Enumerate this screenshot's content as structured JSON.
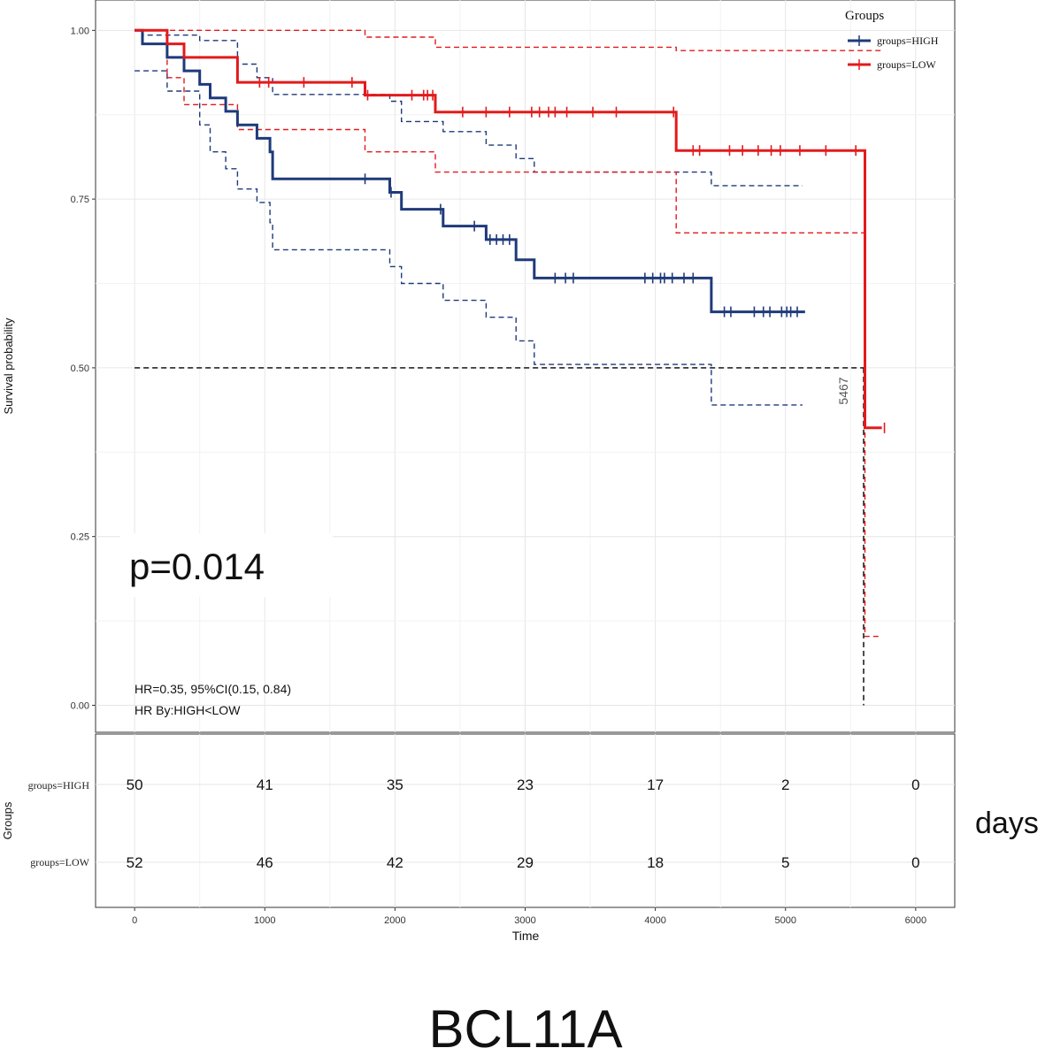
{
  "chart_data": {
    "type": "line",
    "subtype": "kaplan-meier",
    "title": "BCL11A",
    "xlabel": "Time",
    "ylabel": "Survival probability",
    "xlim": [
      -300,
      6300
    ],
    "ylim": [
      -0.04,
      1.045
    ],
    "x_ticks": [
      0,
      1000,
      2000,
      3000,
      4000,
      5000,
      6000
    ],
    "x_tick_labels": [
      "0",
      "1000",
      "2000",
      "3000",
      "4000",
      "5000",
      "6000"
    ],
    "y_ticks": [
      0,
      0.25,
      0.5,
      0.75,
      1.0
    ],
    "y_tick_labels": [
      "0.00",
      "0.25",
      "0.50",
      "0.75",
      "1.00"
    ],
    "grid": true,
    "legend": {
      "title": "Groups",
      "position": "top-right",
      "entries": [
        "groups=HIGH",
        "groups=LOW"
      ]
    },
    "colors": {
      "HIGH": "#1f3a7a",
      "LOW": "#e31a1c",
      "median": "#000000"
    },
    "pvalue_label": "p=0.014",
    "hr_label": "HR=0.35, 95%CI(0.15, 0.84)",
    "hr_by_label": "HR By:HIGH<LOW",
    "median_label": "5467",
    "median_survival_line": {
      "y": 0.5,
      "x_from": 0,
      "x_to": 5600
    },
    "series": [
      {
        "name": "groups=HIGH",
        "key": "HIGH",
        "steps": [
          [
            0,
            1.0
          ],
          [
            60,
            0.98
          ],
          [
            250,
            0.96
          ],
          [
            380,
            0.94
          ],
          [
            500,
            0.92
          ],
          [
            580,
            0.9
          ],
          [
            700,
            0.88
          ],
          [
            790,
            0.86
          ],
          [
            940,
            0.84
          ],
          [
            1040,
            0.82
          ],
          [
            1060,
            0.78
          ],
          [
            1960,
            0.76
          ],
          [
            2050,
            0.735
          ],
          [
            2370,
            0.71
          ],
          [
            2700,
            0.69
          ],
          [
            2930,
            0.66
          ],
          [
            3070,
            0.633
          ],
          [
            4430,
            0.583
          ],
          [
            5150,
            0.583
          ]
        ],
        "censor_times": [
          1770,
          1970,
          2350,
          2610,
          2730,
          2780,
          2830,
          2880,
          3230,
          3310,
          3370,
          3920,
          3980,
          4040,
          4070,
          4130,
          4220,
          4290,
          4530,
          4580,
          4760,
          4830,
          4880,
          4970,
          5010,
          5040,
          5090
        ],
        "ci_upper": [
          [
            0,
            1.0
          ],
          [
            60,
            0.993
          ],
          [
            500,
            0.985
          ],
          [
            790,
            0.95
          ],
          [
            940,
            0.93
          ],
          [
            1060,
            0.905
          ],
          [
            1960,
            0.895
          ],
          [
            2050,
            0.865
          ],
          [
            2370,
            0.85
          ],
          [
            2700,
            0.83
          ],
          [
            2930,
            0.81
          ],
          [
            3070,
            0.79
          ],
          [
            4430,
            0.77
          ],
          [
            5130,
            0.77
          ]
        ],
        "ci_lower": [
          [
            0,
            0.94
          ],
          [
            250,
            0.91
          ],
          [
            500,
            0.86
          ],
          [
            580,
            0.82
          ],
          [
            700,
            0.795
          ],
          [
            790,
            0.765
          ],
          [
            940,
            0.745
          ],
          [
            1040,
            0.715
          ],
          [
            1060,
            0.675
          ],
          [
            1960,
            0.65
          ],
          [
            2050,
            0.625
          ],
          [
            2370,
            0.6
          ],
          [
            2700,
            0.575
          ],
          [
            2930,
            0.54
          ],
          [
            3070,
            0.505
          ],
          [
            4430,
            0.445
          ],
          [
            5130,
            0.445
          ]
        ]
      },
      {
        "name": "groups=LOW",
        "key": "LOW",
        "steps": [
          [
            0,
            1.0
          ],
          [
            250,
            0.98
          ],
          [
            380,
            0.96
          ],
          [
            790,
            0.923
          ],
          [
            1770,
            0.904
          ],
          [
            2310,
            0.879
          ],
          [
            4160,
            0.822
          ],
          [
            5600,
            0.822
          ],
          [
            5610,
            0.411
          ],
          [
            5740,
            0.411
          ]
        ],
        "censor_times": [
          960,
          1030,
          1300,
          1670,
          1790,
          2130,
          2220,
          2250,
          2290,
          2520,
          2700,
          2880,
          3050,
          3110,
          3180,
          3230,
          3320,
          3520,
          3700,
          4140,
          4290,
          4340,
          4570,
          4670,
          4790,
          4890,
          4960,
          5110,
          5310,
          5540,
          5760
        ],
        "ci_upper": [
          [
            0,
            1.0
          ],
          [
            1770,
            0.99
          ],
          [
            2310,
            0.975
          ],
          [
            4160,
            0.97
          ],
          [
            5600,
            0.97
          ],
          [
            5740,
            0.97
          ]
        ],
        "ci_lower": [
          [
            0,
            1.0
          ],
          [
            250,
            0.93
          ],
          [
            380,
            0.89
          ],
          [
            790,
            0.853
          ],
          [
            1770,
            0.82
          ],
          [
            2310,
            0.79
          ],
          [
            4160,
            0.7
          ],
          [
            5600,
            0.7
          ],
          [
            5610,
            0.102
          ],
          [
            5740,
            0.102
          ]
        ]
      }
    ],
    "risk_table": {
      "axis_label": "Groups",
      "x_axis_title": "Time",
      "units_label": "days",
      "times": [
        0,
        1000,
        2000,
        3000,
        4000,
        5000,
        6000
      ],
      "rows": [
        {
          "group": "groups=HIGH",
          "counts": [
            50,
            41,
            35,
            23,
            17,
            2,
            0
          ]
        },
        {
          "group": "groups=LOW",
          "counts": [
            52,
            46,
            42,
            29,
            18,
            5,
            0
          ]
        }
      ]
    }
  }
}
